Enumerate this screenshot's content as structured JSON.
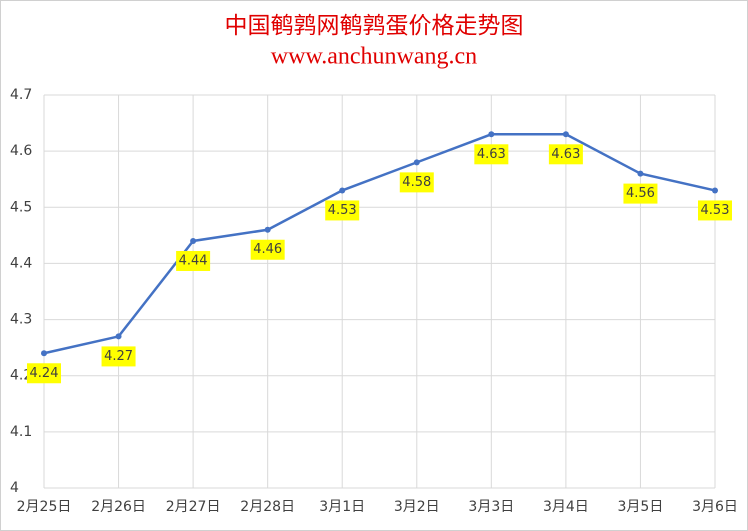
{
  "chart_data": {
    "type": "line",
    "title": "中国鹌鹑网鹌鹑蛋价格走势图",
    "subtitle": "www.anchunwang.cn",
    "categories": [
      "2月25日",
      "2月26日",
      "2月27日",
      "2月28日",
      "3月1日",
      "3月2日",
      "3月3日",
      "3月4日",
      "3月5日",
      "3月6日"
    ],
    "values": [
      4.24,
      4.27,
      4.44,
      4.46,
      4.53,
      4.58,
      4.63,
      4.63,
      4.56,
      4.53
    ],
    "color": "#4472c4",
    "ylim": [
      4,
      4.7
    ],
    "yticks": [
      4,
      4.1,
      4.2,
      4.3,
      4.4,
      4.5,
      4.6,
      4.7
    ],
    "grid": true
  }
}
